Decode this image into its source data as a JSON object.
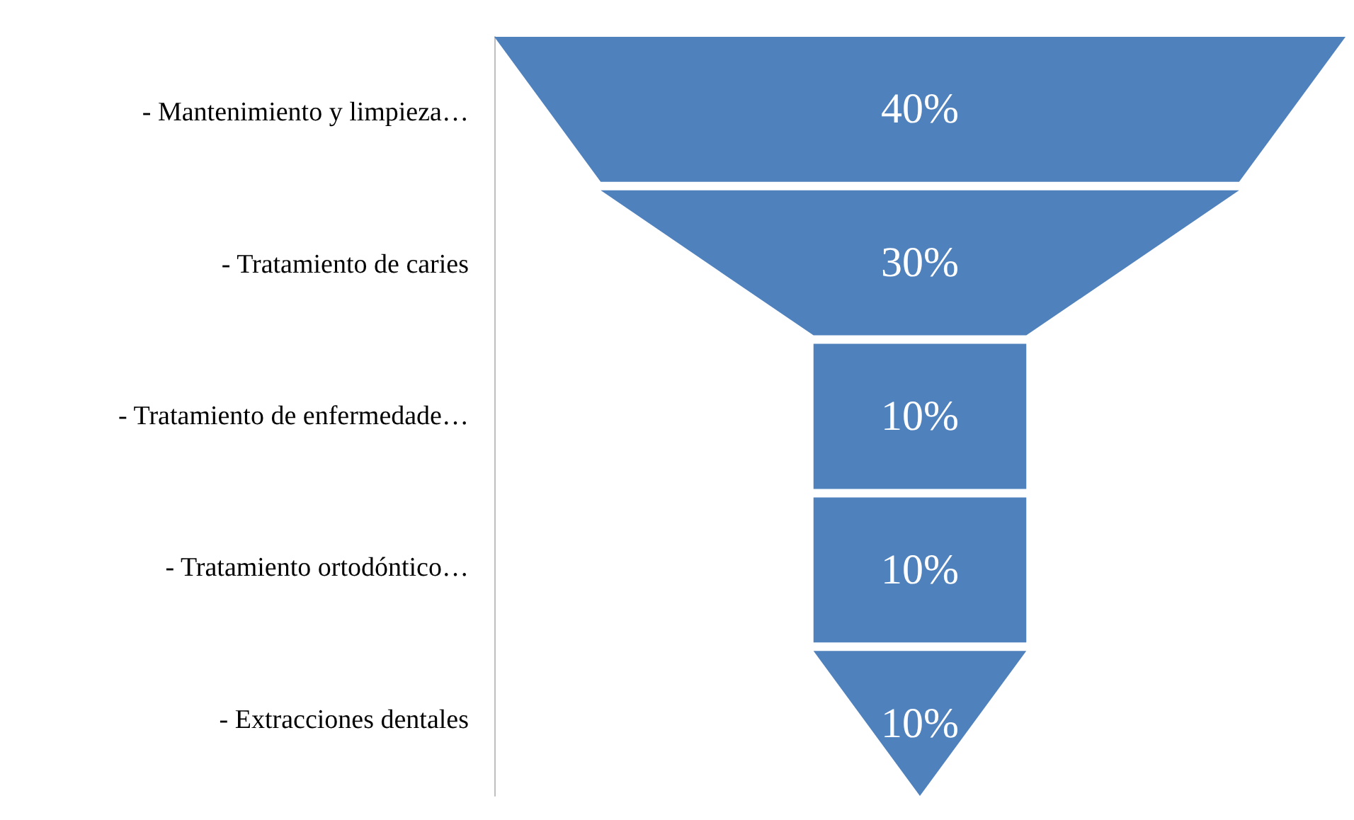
{
  "chart_data": {
    "type": "other",
    "categories": [
      "- Mantenimiento y limpieza…",
      "- Tratamiento de caries",
      "- Tratamiento de enfermedade…",
      "- Tratamiento ortodóntico…",
      "- Extracciones dentales"
    ],
    "values": [
      40,
      30,
      10,
      10,
      10
    ],
    "value_labels": [
      "40%",
      "30%",
      "10%",
      "10%",
      "10%"
    ],
    "color": "#4f81bd"
  }
}
